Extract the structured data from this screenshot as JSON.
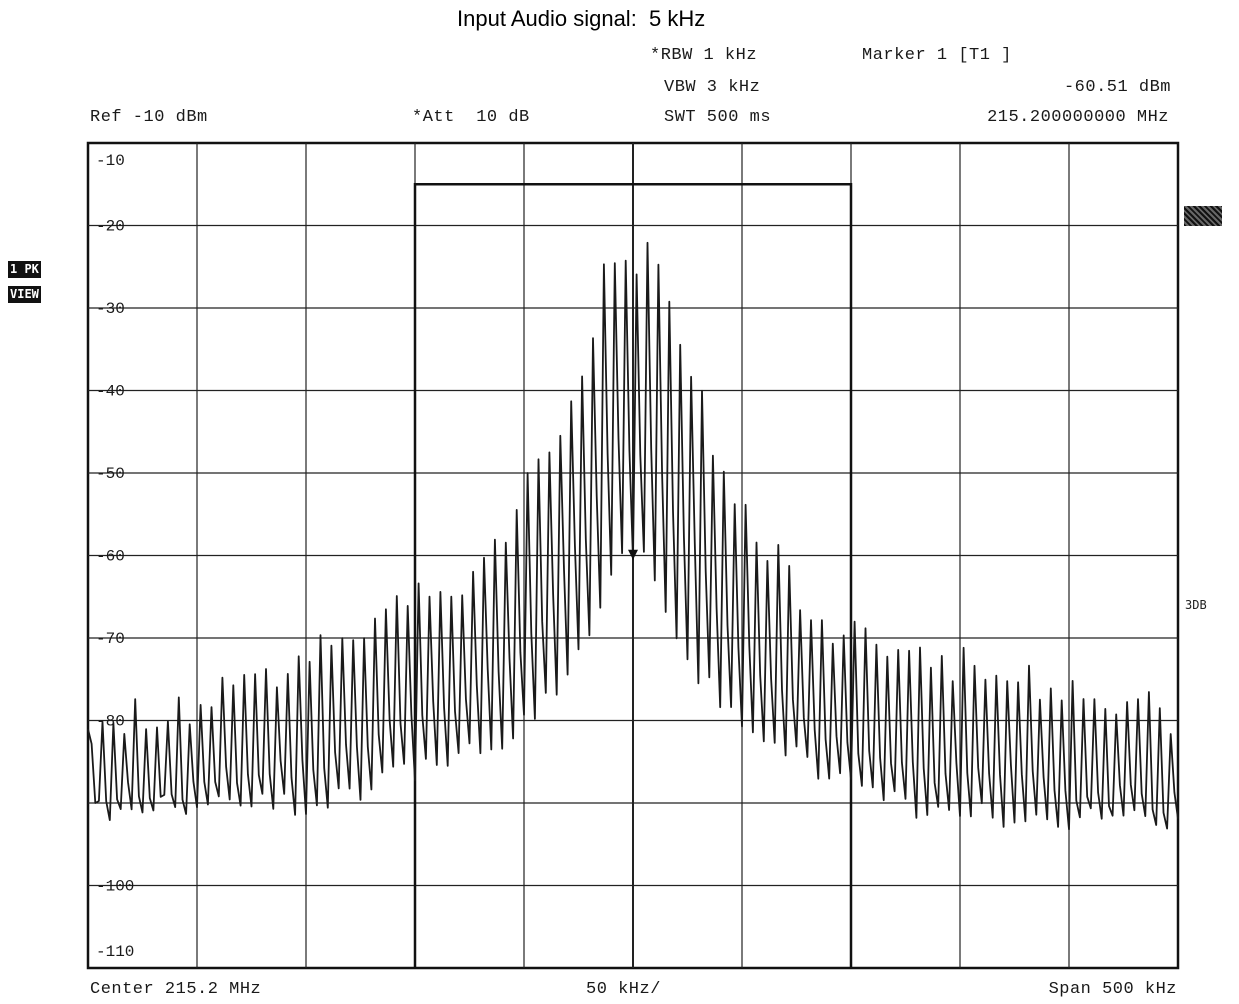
{
  "title": "Input Audio signal:  5 kHz",
  "header": {
    "rbw": "*RBW 1 kHz",
    "vbw": "VBW 3 kHz",
    "swt": "SWT 500 ms",
    "marker_label": "Marker 1 [T1 ]",
    "marker_level": "-60.51 dBm",
    "marker_freq": "215.200000000 MHz",
    "ref": "Ref -10 dBm",
    "att": "*Att  10 dB"
  },
  "side": {
    "trace_mode": "1 PK",
    "trace_view": "VIEW",
    "three_db": "3DB"
  },
  "footer": {
    "center": "Center 215.2 MHz",
    "div": "50 kHz/",
    "span": "Span 500 kHz"
  },
  "colors": {
    "trace": "#1a1a1a",
    "grid": "#222222",
    "background": "#ffffff"
  },
  "chart_data": {
    "type": "line",
    "xlabel": "",
    "ylabel": "",
    "x_unit": "kHz offset from center",
    "xlim": [
      -250,
      250
    ],
    "ylim": [
      -110,
      -10
    ],
    "y_ticks": [
      -10,
      -20,
      -30,
      -40,
      -50,
      -60,
      -70,
      -80,
      -100,
      -110
    ],
    "y_tick_labels": [
      "-10",
      "-20",
      "-30",
      "-40",
      "-50",
      "-60",
      "-70",
      "-80",
      "-100",
      "-110"
    ],
    "grid": true,
    "line_spacing_khz": 5,
    "center_level_dbm": -60.5,
    "envelope": {
      "x": [
        -250,
        -200,
        -150,
        -120,
        -100,
        -80,
        -60,
        -40,
        -20,
        -10,
        0,
        10,
        20,
        40,
        60,
        80,
        100,
        120,
        150,
        200,
        250
      ],
      "peak_dbm": [
        -81,
        -78,
        -72,
        -68,
        -66,
        -63,
        -57,
        -48,
        -35,
        -22,
        -25,
        -23,
        -33,
        -48,
        -58,
        -66,
        -70,
        -72,
        -73,
        -76,
        -80
      ],
      "floor_dbm": [
        -91,
        -90,
        -90,
        -88,
        -86,
        -84,
        -82,
        -78,
        -70,
        -62,
        -60,
        -62,
        -70,
        -78,
        -82,
        -85,
        -88,
        -90,
        -91,
        -92,
        -92
      ]
    },
    "limit_box": {
      "x_start": -100,
      "x_end": 100,
      "level_dbm": -15
    },
    "marker": {
      "x": 0,
      "y": -60.51
    }
  }
}
